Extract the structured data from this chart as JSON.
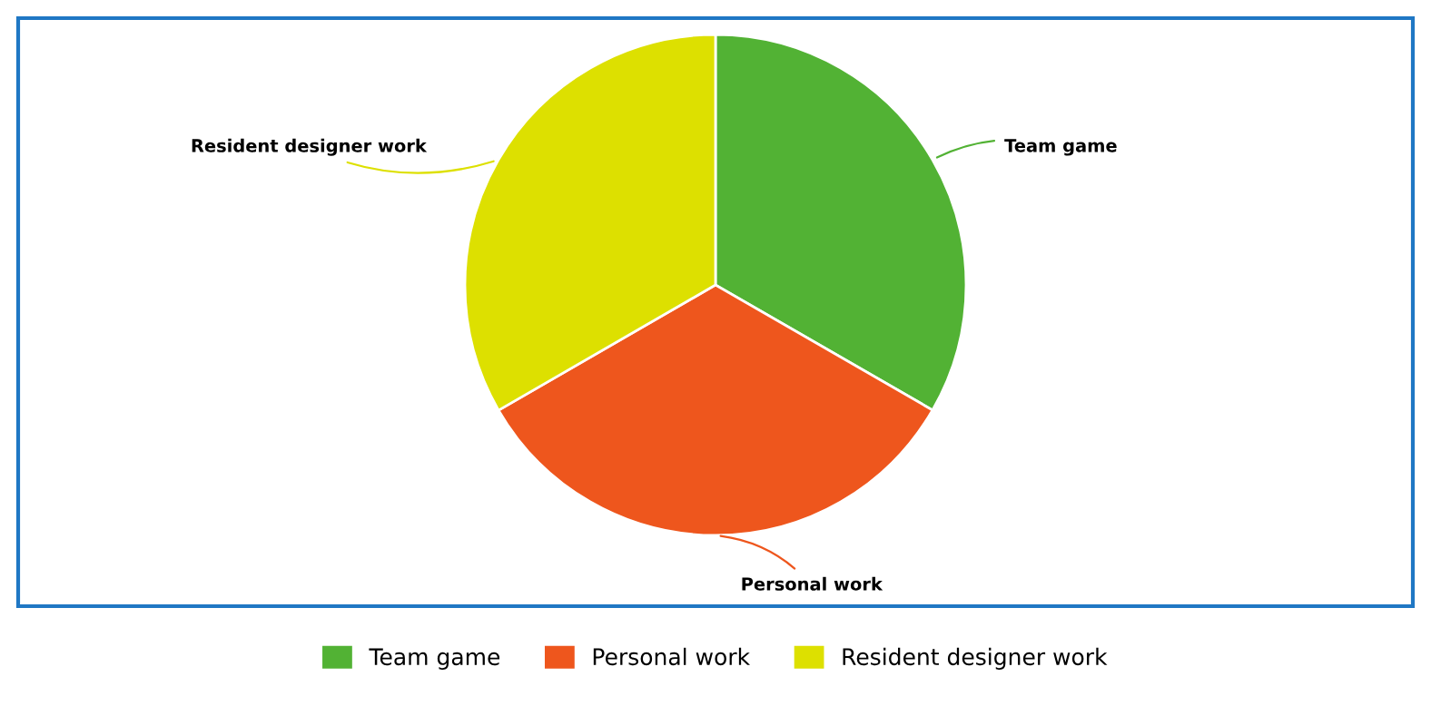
{
  "chart_data": {
    "type": "pie",
    "categories": [
      "Team game",
      "Personal work",
      "Resident designer work"
    ],
    "values": [
      33.33,
      33.33,
      33.34
    ],
    "colors": [
      "#52b234",
      "#ee561d",
      "#dde000"
    ],
    "legend": "bottom"
  }
}
